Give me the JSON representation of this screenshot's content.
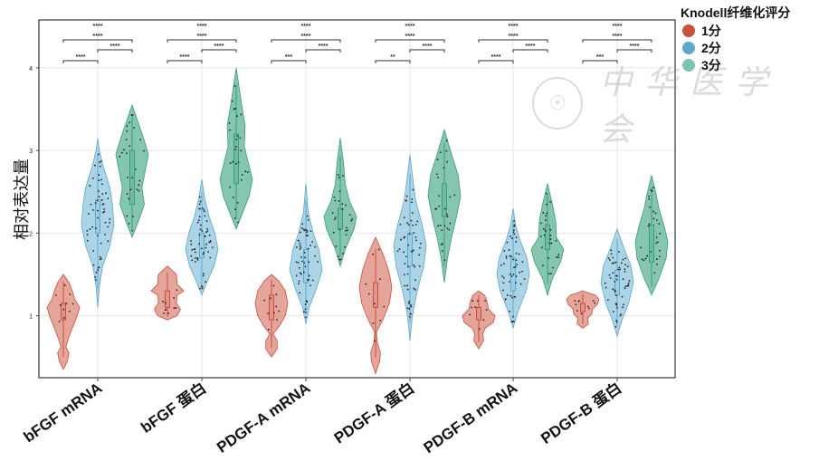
{
  "chart_data": {
    "type": "violin",
    "title": "",
    "xlabel": "",
    "ylabel": "相对表达量",
    "ylim": [
      0.25,
      4.58
    ],
    "yticks": [
      1,
      2,
      3,
      4
    ],
    "grid": true,
    "legend": {
      "title": "Knodell纤维化评分",
      "placement": "top-right-outside",
      "entries": [
        {
          "name": "1分",
          "color": "#c8503c"
        },
        {
          "name": "2分",
          "color": "#5fa8c9"
        },
        {
          "name": "3分",
          "color": "#5aae92"
        }
      ]
    },
    "categories": [
      "bFGF mRNA",
      "bFGF 蛋白",
      "PDGF-A mRNA",
      "PDGF-A 蛋白",
      "PDGF-B mRNA",
      "PDGF-B 蛋白"
    ],
    "series": [
      {
        "name": "1分",
        "color": "#c8503c",
        "fill": "#e0958a",
        "values": [
          {
            "min": 0.35,
            "q1": 0.95,
            "median": 1.05,
            "q3": 1.15,
            "max": 1.5,
            "profile": [
              [
                0.35,
                0
              ],
              [
                0.45,
                0.25
              ],
              [
                0.55,
                0.35
              ],
              [
                0.62,
                0.15
              ],
              [
                0.72,
                0.3
              ],
              [
                0.85,
                0.55
              ],
              [
                1.0,
                0.85
              ],
              [
                1.1,
                1.0
              ],
              [
                1.2,
                0.7
              ],
              [
                1.3,
                0.55
              ],
              [
                1.4,
                0.35
              ],
              [
                1.5,
                0
              ]
            ]
          },
          {
            "min": 0.95,
            "q1": 1.1,
            "median": 1.2,
            "q3": 1.3,
            "max": 1.6,
            "profile": [
              [
                0.95,
                0
              ],
              [
                1.0,
                0.6
              ],
              [
                1.08,
                0.8
              ],
              [
                1.15,
                0.55
              ],
              [
                1.25,
                0.6
              ],
              [
                1.3,
                1.0
              ],
              [
                1.38,
                0.6
              ],
              [
                1.5,
                0.55
              ],
              [
                1.6,
                0
              ]
            ]
          },
          {
            "min": 0.5,
            "q1": 0.95,
            "median": 1.05,
            "q3": 1.25,
            "max": 1.5,
            "profile": [
              [
                0.5,
                0
              ],
              [
                0.6,
                0.35
              ],
              [
                0.7,
                0.35
              ],
              [
                0.78,
                0.1
              ],
              [
                0.88,
                0.5
              ],
              [
                1.0,
                0.85
              ],
              [
                1.15,
                1.0
              ],
              [
                1.3,
                0.85
              ],
              [
                1.42,
                0.45
              ],
              [
                1.5,
                0
              ]
            ]
          },
          {
            "min": 0.3,
            "q1": 1.1,
            "median": 1.25,
            "q3": 1.4,
            "max": 1.95,
            "profile": [
              [
                0.3,
                0
              ],
              [
                0.45,
                0.25
              ],
              [
                0.55,
                0.3
              ],
              [
                0.68,
                0.1
              ],
              [
                0.8,
                0.05
              ],
              [
                0.95,
                0.45
              ],
              [
                1.15,
                0.85
              ],
              [
                1.35,
                1.0
              ],
              [
                1.55,
                0.8
              ],
              [
                1.75,
                0.45
              ],
              [
                1.95,
                0
              ]
            ]
          },
          {
            "min": 0.6,
            "q1": 0.95,
            "median": 1.0,
            "q3": 1.1,
            "max": 1.3,
            "profile": [
              [
                0.6,
                0
              ],
              [
                0.7,
                0.3
              ],
              [
                0.78,
                0.25
              ],
              [
                0.85,
                0.4
              ],
              [
                0.92,
                0.9
              ],
              [
                1.0,
                1.0
              ],
              [
                1.08,
                0.6
              ],
              [
                1.18,
                0.5
              ],
              [
                1.25,
                0.35
              ],
              [
                1.3,
                0
              ]
            ]
          },
          {
            "min": 0.85,
            "q1": 1.05,
            "median": 1.1,
            "q3": 1.15,
            "max": 1.3,
            "profile": [
              [
                0.85,
                0
              ],
              [
                0.9,
                0.35
              ],
              [
                0.97,
                0.3
              ],
              [
                1.02,
                0.55
              ],
              [
                1.08,
                0.6
              ],
              [
                1.14,
                0.9
              ],
              [
                1.2,
                1.0
              ],
              [
                1.25,
                0.75
              ],
              [
                1.3,
                0
              ]
            ]
          }
        ]
      },
      {
        "name": "2分",
        "color": "#5fa8c9",
        "fill": "#9ccde2",
        "values": [
          {
            "min": 1.1,
            "q1": 2.0,
            "median": 2.2,
            "q3": 2.4,
            "max": 3.15,
            "profile": [
              [
                1.1,
                0
              ],
              [
                1.35,
                0.1
              ],
              [
                1.6,
                0.3
              ],
              [
                1.85,
                0.75
              ],
              [
                2.1,
                1.0
              ],
              [
                2.35,
                0.9
              ],
              [
                2.55,
                0.75
              ],
              [
                2.8,
                0.35
              ],
              [
                3.0,
                0.1
              ],
              [
                3.15,
                0
              ]
            ]
          },
          {
            "min": 1.25,
            "q1": 1.7,
            "median": 1.85,
            "q3": 2.0,
            "max": 2.65,
            "profile": [
              [
                1.25,
                0
              ],
              [
                1.4,
                0.3
              ],
              [
                1.6,
                0.75
              ],
              [
                1.8,
                1.0
              ],
              [
                2.0,
                0.8
              ],
              [
                2.2,
                0.45
              ],
              [
                2.4,
                0.2
              ],
              [
                2.65,
                0
              ]
            ]
          },
          {
            "min": 0.9,
            "q1": 1.4,
            "median": 1.6,
            "q3": 1.8,
            "max": 2.6,
            "profile": [
              [
                0.9,
                0
              ],
              [
                1.1,
                0.2
              ],
              [
                1.3,
                0.6
              ],
              [
                1.55,
                1.0
              ],
              [
                1.8,
                0.8
              ],
              [
                2.0,
                0.45
              ],
              [
                2.25,
                0.15
              ],
              [
                2.6,
                0
              ]
            ]
          },
          {
            "min": 0.7,
            "q1": 1.6,
            "median": 1.8,
            "q3": 2.0,
            "max": 2.95,
            "profile": [
              [
                0.7,
                0
              ],
              [
                1.0,
                0.15
              ],
              [
                1.3,
                0.45
              ],
              [
                1.6,
                0.85
              ],
              [
                1.85,
                1.0
              ],
              [
                2.1,
                0.75
              ],
              [
                2.4,
                0.35
              ],
              [
                2.7,
                0.15
              ],
              [
                2.95,
                0
              ]
            ]
          },
          {
            "min": 0.85,
            "q1": 1.3,
            "median": 1.5,
            "q3": 1.7,
            "max": 2.3,
            "profile": [
              [
                0.85,
                0
              ],
              [
                1.05,
                0.3
              ],
              [
                1.3,
                0.8
              ],
              [
                1.5,
                1.0
              ],
              [
                1.7,
                0.85
              ],
              [
                1.9,
                0.45
              ],
              [
                2.1,
                0.15
              ],
              [
                2.3,
                0
              ]
            ]
          },
          {
            "min": 0.75,
            "q1": 1.25,
            "median": 1.4,
            "q3": 1.55,
            "max": 2.05,
            "profile": [
              [
                0.75,
                0
              ],
              [
                0.95,
                0.3
              ],
              [
                1.15,
                0.7
              ],
              [
                1.4,
                1.0
              ],
              [
                1.6,
                0.85
              ],
              [
                1.8,
                0.45
              ],
              [
                2.05,
                0
              ]
            ]
          }
        ]
      },
      {
        "name": "3分",
        "color": "#3f9a7a",
        "fill": "#6fbca0",
        "values": [
          {
            "min": 1.95,
            "q1": 2.35,
            "median": 2.6,
            "q3": 3.0,
            "max": 3.55,
            "profile": [
              [
                1.95,
                0
              ],
              [
                2.15,
                0.4
              ],
              [
                2.35,
                0.75
              ],
              [
                2.55,
                0.6
              ],
              [
                2.7,
                0.75
              ],
              [
                2.95,
                1.0
              ],
              [
                3.15,
                0.7
              ],
              [
                3.35,
                0.35
              ],
              [
                3.55,
                0
              ]
            ]
          },
          {
            "min": 2.05,
            "q1": 2.6,
            "median": 2.8,
            "q3": 3.2,
            "max": 4.0,
            "profile": [
              [
                2.05,
                0
              ],
              [
                2.25,
                0.4
              ],
              [
                2.45,
                0.8
              ],
              [
                2.65,
                1.0
              ],
              [
                2.85,
                0.75
              ],
              [
                3.05,
                0.5
              ],
              [
                3.3,
                0.55
              ],
              [
                3.6,
                0.3
              ],
              [
                4.0,
                0
              ]
            ]
          },
          {
            "min": 1.6,
            "q1": 2.05,
            "median": 2.15,
            "q3": 2.3,
            "max": 3.15,
            "profile": [
              [
                1.6,
                0
              ],
              [
                1.8,
                0.3
              ],
              [
                2.05,
                0.85
              ],
              [
                2.2,
                1.0
              ],
              [
                2.4,
                0.55
              ],
              [
                2.6,
                0.3
              ],
              [
                2.85,
                0.2
              ],
              [
                3.15,
                0
              ]
            ]
          },
          {
            "min": 1.4,
            "q1": 2.2,
            "median": 2.45,
            "q3": 2.6,
            "max": 3.25,
            "profile": [
              [
                1.4,
                0
              ],
              [
                1.7,
                0.2
              ],
              [
                1.95,
                0.45
              ],
              [
                2.2,
                0.75
              ],
              [
                2.45,
                1.0
              ],
              [
                2.7,
                0.85
              ],
              [
                2.95,
                0.45
              ],
              [
                3.25,
                0
              ]
            ]
          },
          {
            "min": 1.25,
            "q1": 1.8,
            "median": 1.95,
            "q3": 2.1,
            "max": 2.6,
            "profile": [
              [
                1.25,
                0
              ],
              [
                1.45,
                0.3
              ],
              [
                1.65,
                0.8
              ],
              [
                1.8,
                1.0
              ],
              [
                1.95,
                0.55
              ],
              [
                2.15,
                0.5
              ],
              [
                2.35,
                0.3
              ],
              [
                2.6,
                0
              ]
            ]
          },
          {
            "min": 1.25,
            "q1": 1.65,
            "median": 1.85,
            "q3": 2.1,
            "max": 2.7,
            "profile": [
              [
                1.25,
                0
              ],
              [
                1.45,
                0.45
              ],
              [
                1.7,
                0.9
              ],
              [
                1.9,
                1.0
              ],
              [
                2.1,
                0.75
              ],
              [
                2.3,
                0.45
              ],
              [
                2.5,
                0.25
              ],
              [
                2.7,
                0
              ]
            ]
          }
        ]
      }
    ],
    "significance": [
      {
        "group": "bFGF mRNA",
        "g1_vs_g2": "****",
        "g2_vs_g3": "****",
        "g1_vs_g3": "****",
        "overall": "****"
      },
      {
        "group": "bFGF 蛋白",
        "g1_vs_g2": "****",
        "g2_vs_g3": "****",
        "g1_vs_g3": "****",
        "overall": "****"
      },
      {
        "group": "PDGF-A mRNA",
        "g1_vs_g2": "***",
        "g2_vs_g3": "****",
        "g1_vs_g3": "****",
        "overall": "****"
      },
      {
        "group": "PDGF-A 蛋白",
        "g1_vs_g2": "**",
        "g2_vs_g3": "****",
        "g1_vs_g3": "****",
        "overall": "****"
      },
      {
        "group": "PDGF-B mRNA",
        "g1_vs_g2": "****",
        "g2_vs_g3": "****",
        "g1_vs_g3": "****",
        "overall": "****"
      },
      {
        "group": "PDGF-B 蛋白",
        "g1_vs_g2": "***",
        "g2_vs_g3": "****",
        "g1_vs_g3": "****",
        "overall": "****"
      }
    ]
  },
  "watermark": {
    "seal_glyph": "☉",
    "text": "中华医学会"
  }
}
